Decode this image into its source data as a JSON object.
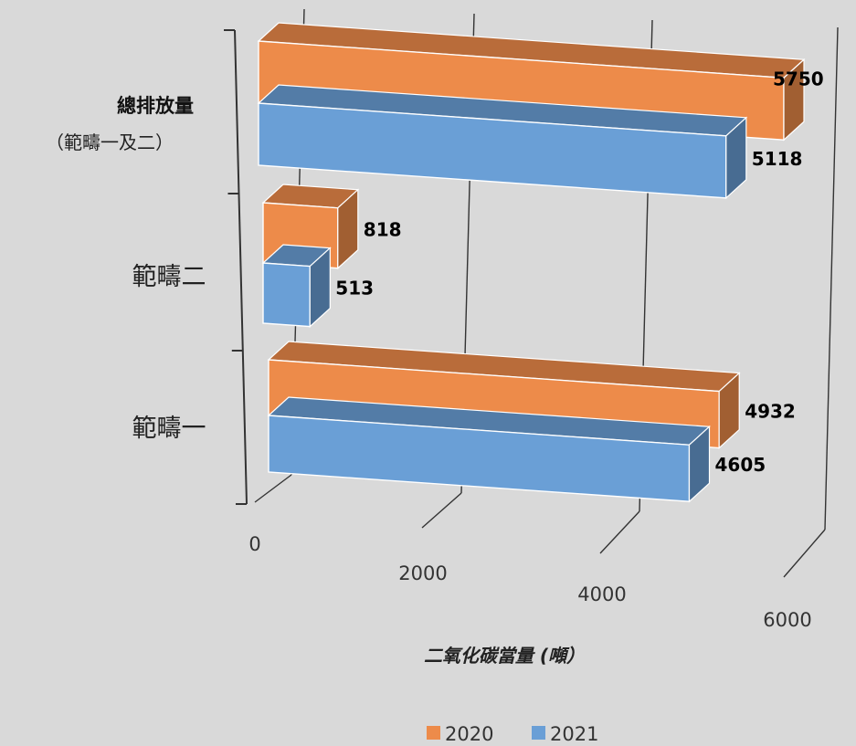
{
  "chart_data": {
    "type": "bar",
    "orientation": "horizontal",
    "style": "3d",
    "categories": [
      {
        "main": "總排放量",
        "sub": "（範疇一及二）"
      },
      {
        "main": "範疇二",
        "sub": ""
      },
      {
        "main": "範疇一",
        "sub": ""
      }
    ],
    "series": [
      {
        "name": "2020",
        "color": "#ed8b4a",
        "values": [
          5750,
          818,
          4932
        ]
      },
      {
        "name": "2021",
        "color": "#6a9fd6",
        "values": [
          5118,
          513,
          4605
        ]
      }
    ],
    "x_ticks": [
      "0",
      "2000",
      "4000",
      "6000"
    ],
    "xlabel": "二氧化碳當量 (噸）",
    "xlim": [
      0,
      6000
    ],
    "legend": "bottom",
    "grid": true
  }
}
